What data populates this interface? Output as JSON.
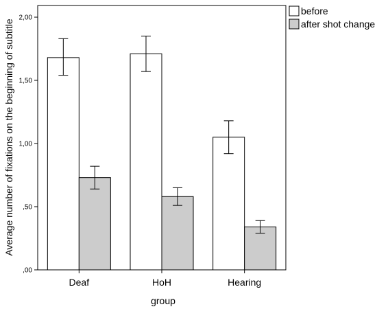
{
  "chart_data": {
    "type": "bar",
    "title": "",
    "xlabel": "group",
    "ylabel": "Average number of fixations on the beginning of subtitle",
    "categories": [
      "Deaf",
      "HoH",
      "Hearing"
    ],
    "ylim": [
      0,
      2.0
    ],
    "yticks": [
      {
        "value": 0,
        "label": ",00"
      },
      {
        "value": 0.5,
        "label": ",50"
      },
      {
        "value": 1.0,
        "label": "1,00"
      },
      {
        "value": 1.5,
        "label": "1,50"
      },
      {
        "value": 2.0,
        "label": "2,00"
      }
    ],
    "grid": false,
    "legend_position": "top-right",
    "error_bars": true,
    "series": [
      {
        "name": "before",
        "color": "#ffffff",
        "values": [
          1.68,
          1.71,
          1.05
        ],
        "err_low": [
          1.54,
          1.57,
          0.92
        ],
        "err_high": [
          1.83,
          1.85,
          1.18
        ]
      },
      {
        "name": "after shot change",
        "color": "#cccccc",
        "values": [
          0.73,
          0.58,
          0.34
        ],
        "err_low": [
          0.64,
          0.51,
          0.29
        ],
        "err_high": [
          0.82,
          0.65,
          0.39
        ]
      }
    ]
  }
}
